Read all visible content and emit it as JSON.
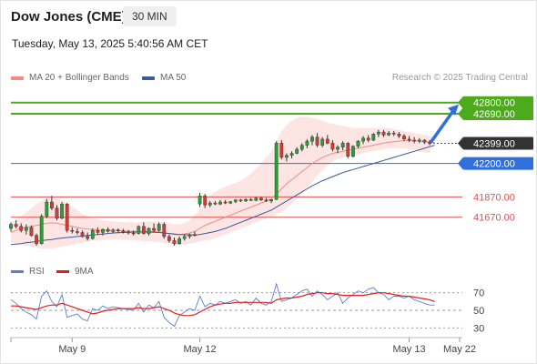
{
  "header": {
    "title": "Dow Jones (CME)",
    "interval": "30 MIN",
    "datetime": "Tuesday, May 13, 2025 5:40:56 AM CET"
  },
  "legend": {
    "items": [
      {
        "label": "MA 20 + Bollinger Bands",
        "color": "#f28b82"
      },
      {
        "label": "MA 50",
        "color": "#3b5b9a"
      }
    ],
    "credit": "Research © 2025 Trading Central"
  },
  "rsi_legend": {
    "items": [
      {
        "label": "RSI",
        "color": "#5b7fd6"
      },
      {
        "label": "9MA",
        "color": "#e0201b"
      }
    ]
  },
  "chart_data": {
    "type": "candlestick",
    "price_axis": {
      "min": 41300,
      "max": 42950
    },
    "x_ticks": [
      "May 9",
      "May 12",
      "May 13",
      "May 22"
    ],
    "levels": [
      {
        "value": 42800,
        "label": "42800.00",
        "role": "resistance",
        "color": "#4caa1c"
      },
      {
        "value": 42690,
        "label": "42690.00",
        "role": "resistance",
        "color": "#4caa1c"
      },
      {
        "value": 42399,
        "label": "42399.00",
        "role": "last",
        "color": "#333333"
      },
      {
        "value": 42200,
        "label": "42200.00",
        "role": "pivot",
        "color": "#2f6fde"
      },
      {
        "value": 41870,
        "label": "41870.00",
        "role": "support",
        "color": "#e05050"
      },
      {
        "value": 41670,
        "label": "41670.00",
        "role": "support",
        "color": "#e05050"
      }
    ],
    "candles": [
      {
        "o": 41560,
        "h": 41620,
        "l": 41530,
        "c": 41600
      },
      {
        "o": 41600,
        "h": 41640,
        "l": 41560,
        "c": 41580
      },
      {
        "o": 41580,
        "h": 41610,
        "l": 41520,
        "c": 41540
      },
      {
        "o": 41540,
        "h": 41600,
        "l": 41500,
        "c": 41570
      },
      {
        "o": 41570,
        "h": 41590,
        "l": 41480,
        "c": 41490
      },
      {
        "o": 41490,
        "h": 41510,
        "l": 41390,
        "c": 41410
      },
      {
        "o": 41410,
        "h": 41700,
        "l": 41400,
        "c": 41680
      },
      {
        "o": 41680,
        "h": 41850,
        "l": 41660,
        "c": 41820
      },
      {
        "o": 41820,
        "h": 41880,
        "l": 41740,
        "c": 41760
      },
      {
        "o": 41760,
        "h": 41790,
        "l": 41640,
        "c": 41660
      },
      {
        "o": 41660,
        "h": 41820,
        "l": 41650,
        "c": 41800
      },
      {
        "o": 41800,
        "h": 41810,
        "l": 41520,
        "c": 41540
      },
      {
        "o": 41540,
        "h": 41570,
        "l": 41510,
        "c": 41530
      },
      {
        "o": 41530,
        "h": 41560,
        "l": 41500,
        "c": 41520
      },
      {
        "o": 41520,
        "h": 41540,
        "l": 41470,
        "c": 41480
      },
      {
        "o": 41480,
        "h": 41520,
        "l": 41440,
        "c": 41460
      },
      {
        "o": 41460,
        "h": 41560,
        "l": 41450,
        "c": 41540
      },
      {
        "o": 41540,
        "h": 41570,
        "l": 41500,
        "c": 41520
      },
      {
        "o": 41520,
        "h": 41560,
        "l": 41490,
        "c": 41550
      },
      {
        "o": 41550,
        "h": 41570,
        "l": 41520,
        "c": 41530
      },
      {
        "o": 41530,
        "h": 41560,
        "l": 41510,
        "c": 41545
      },
      {
        "o": 41545,
        "h": 41560,
        "l": 41520,
        "c": 41535
      },
      {
        "o": 41535,
        "h": 41555,
        "l": 41510,
        "c": 41525
      },
      {
        "o": 41525,
        "h": 41545,
        "l": 41500,
        "c": 41515
      },
      {
        "o": 41515,
        "h": 41540,
        "l": 41490,
        "c": 41510
      },
      {
        "o": 41510,
        "h": 41590,
        "l": 41500,
        "c": 41580
      },
      {
        "o": 41580,
        "h": 41620,
        "l": 41500,
        "c": 41510
      },
      {
        "o": 41510,
        "h": 41570,
        "l": 41490,
        "c": 41560
      },
      {
        "o": 41560,
        "h": 41610,
        "l": 41520,
        "c": 41540
      },
      {
        "o": 41540,
        "h": 41620,
        "l": 41530,
        "c": 41600
      },
      {
        "o": 41600,
        "h": 41620,
        "l": 41460,
        "c": 41480
      },
      {
        "o": 41480,
        "h": 41500,
        "l": 41420,
        "c": 41440
      },
      {
        "o": 41440,
        "h": 41470,
        "l": 41390,
        "c": 41410
      },
      {
        "o": 41410,
        "h": 41480,
        "l": 41400,
        "c": 41460
      },
      {
        "o": 41460,
        "h": 41500,
        "l": 41440,
        "c": 41480
      },
      {
        "o": 41480,
        "h": 41510,
        "l": 41460,
        "c": 41500
      },
      {
        "o": 41500,
        "h": 41530,
        "l": 41480,
        "c": 41490
      },
      {
        "o": 41800,
        "h": 41910,
        "l": 41770,
        "c": 41880
      },
      {
        "o": 41880,
        "h": 41900,
        "l": 41760,
        "c": 41790
      },
      {
        "o": 41790,
        "h": 41830,
        "l": 41770,
        "c": 41810
      },
      {
        "o": 41810,
        "h": 41830,
        "l": 41790,
        "c": 41800
      },
      {
        "o": 41800,
        "h": 41840,
        "l": 41790,
        "c": 41820
      },
      {
        "o": 41820,
        "h": 41840,
        "l": 41800,
        "c": 41810
      },
      {
        "o": 41810,
        "h": 41830,
        "l": 41800,
        "c": 41825
      },
      {
        "o": 41825,
        "h": 41850,
        "l": 41810,
        "c": 41840
      },
      {
        "o": 41840,
        "h": 41850,
        "l": 41820,
        "c": 41830
      },
      {
        "o": 41830,
        "h": 41860,
        "l": 41820,
        "c": 41845
      },
      {
        "o": 41845,
        "h": 41860,
        "l": 41830,
        "c": 41835
      },
      {
        "o": 41835,
        "h": 41870,
        "l": 41830,
        "c": 41860
      },
      {
        "o": 41860,
        "h": 41870,
        "l": 41830,
        "c": 41840
      },
      {
        "o": 41840,
        "h": 41860,
        "l": 41820,
        "c": 41830
      },
      {
        "o": 41830,
        "h": 41850,
        "l": 41810,
        "c": 41845
      },
      {
        "o": 41845,
        "h": 42420,
        "l": 41840,
        "c": 42400
      },
      {
        "o": 42400,
        "h": 42430,
        "l": 42240,
        "c": 42260
      },
      {
        "o": 42260,
        "h": 42300,
        "l": 42220,
        "c": 42280
      },
      {
        "o": 42280,
        "h": 42320,
        "l": 42250,
        "c": 42300
      },
      {
        "o": 42300,
        "h": 42360,
        "l": 42290,
        "c": 42340
      },
      {
        "o": 42340,
        "h": 42400,
        "l": 42320,
        "c": 42380
      },
      {
        "o": 42380,
        "h": 42440,
        "l": 42350,
        "c": 42420
      },
      {
        "o": 42420,
        "h": 42480,
        "l": 42380,
        "c": 42460
      },
      {
        "o": 42460,
        "h": 42500,
        "l": 42360,
        "c": 42380
      },
      {
        "o": 42380,
        "h": 42460,
        "l": 42360,
        "c": 42440
      },
      {
        "o": 42440,
        "h": 42480,
        "l": 42390,
        "c": 42400
      },
      {
        "o": 42400,
        "h": 42430,
        "l": 42320,
        "c": 42340
      },
      {
        "o": 42340,
        "h": 42380,
        "l": 42300,
        "c": 42360
      },
      {
        "o": 42360,
        "h": 42420,
        "l": 42330,
        "c": 42400
      },
      {
        "o": 42400,
        "h": 42410,
        "l": 42250,
        "c": 42270
      },
      {
        "o": 42270,
        "h": 42380,
        "l": 42260,
        "c": 42370
      },
      {
        "o": 42370,
        "h": 42430,
        "l": 42350,
        "c": 42420
      },
      {
        "o": 42420,
        "h": 42470,
        "l": 42390,
        "c": 42450
      },
      {
        "o": 42450,
        "h": 42480,
        "l": 42410,
        "c": 42430
      },
      {
        "o": 42430,
        "h": 42500,
        "l": 42420,
        "c": 42490
      },
      {
        "o": 42490,
        "h": 42530,
        "l": 42460,
        "c": 42510
      },
      {
        "o": 42510,
        "h": 42530,
        "l": 42460,
        "c": 42480
      },
      {
        "o": 42480,
        "h": 42520,
        "l": 42470,
        "c": 42500
      },
      {
        "o": 42500,
        "h": 42520,
        "l": 42470,
        "c": 42490
      },
      {
        "o": 42490,
        "h": 42510,
        "l": 42450,
        "c": 42470
      },
      {
        "o": 42470,
        "h": 42490,
        "l": 42420,
        "c": 42440
      },
      {
        "o": 42440,
        "h": 42470,
        "l": 42410,
        "c": 42430
      },
      {
        "o": 42430,
        "h": 42460,
        "l": 42400,
        "c": 42420
      },
      {
        "o": 42420,
        "h": 42450,
        "l": 42400,
        "c": 42430
      },
      {
        "o": 42430,
        "h": 42440,
        "l": 42390,
        "c": 42410
      },
      {
        "o": 42410,
        "h": 42430,
        "l": 42380,
        "c": 42399
      }
    ],
    "ma20": [
      41520,
      41540,
      41560,
      41570,
      41580,
      41590,
      41600,
      41610,
      41615,
      41610,
      41600,
      41590,
      41580,
      41570,
      41560,
      41555,
      41550,
      41545,
      41540,
      41540,
      41540,
      41538,
      41535,
      41533,
      41530,
      41530,
      41530,
      41530,
      41528,
      41525,
      41520,
      41510,
      41500,
      41500,
      41505,
      41515,
      41530,
      41560,
      41590,
      41610,
      41630,
      41650,
      41670,
      41690,
      41710,
      41730,
      41750,
      41770,
      41790,
      41810,
      41830,
      41850,
      41900,
      41950,
      42000,
      42040,
      42080,
      42120,
      42160,
      42200,
      42230,
      42260,
      42280,
      42300,
      42310,
      42320,
      42330,
      42340,
      42350,
      42360,
      42370,
      42380,
      42390,
      42400,
      42410,
      42415,
      42420,
      42425,
      42425,
      42425,
      42420,
      42415,
      42410,
      42405
    ],
    "bb_upper": [
      41620,
      41640,
      41680,
      41720,
      41760,
      41800,
      41830,
      41860,
      41870,
      41860,
      41840,
      41810,
      41780,
      41740,
      41700,
      41680,
      41660,
      41650,
      41640,
      41635,
      41630,
      41625,
      41620,
      41620,
      41620,
      41620,
      41625,
      41630,
      41630,
      41625,
      41620,
      41610,
      41600,
      41600,
      41610,
      41640,
      41690,
      41750,
      41820,
      41880,
      41920,
      41950,
      41970,
      41990,
      42010,
      42030,
      42060,
      42100,
      42150,
      42200,
      42260,
      42320,
      42420,
      42520,
      42580,
      42620,
      42650,
      42660,
      42660,
      42650,
      42640,
      42620,
      42600,
      42590,
      42580,
      42570,
      42560,
      42550,
      42550,
      42550,
      42550,
      42550,
      42550,
      42550,
      42550,
      42540,
      42530,
      42520,
      42510,
      42500,
      42490,
      42480,
      42470,
      42460
    ],
    "bb_lower": [
      41420,
      41410,
      41400,
      41390,
      41380,
      41370,
      41360,
      41360,
      41360,
      41370,
      41380,
      41390,
      41400,
      41410,
      41420,
      41430,
      41440,
      41440,
      41440,
      41445,
      41450,
      41450,
      41450,
      41446,
      41440,
      41440,
      41435,
      41430,
      41426,
      41425,
      41420,
      41410,
      41400,
      41400,
      41400,
      41410,
      41420,
      41430,
      41440,
      41450,
      41460,
      41480,
      41500,
      41520,
      41540,
      41560,
      41580,
      41600,
      41620,
      41640,
      41660,
      41680,
      41700,
      41720,
      41760,
      41800,
      41850,
      41900,
      41960,
      42020,
      42080,
      42130,
      42180,
      42220,
      42240,
      42260,
      42270,
      42280,
      42290,
      42300,
      42310,
      42320,
      42330,
      42340,
      42350,
      42350,
      42350,
      42350,
      42340,
      42330,
      42320,
      42310,
      42300,
      42290
    ],
    "ma50": [
      41400,
      41405,
      41410,
      41420,
      41425,
      41430,
      41440,
      41445,
      41450,
      41460,
      41465,
      41470,
      41475,
      41480,
      41485,
      41490,
      41495,
      41500,
      41505,
      41510,
      41515,
      41518,
      41520,
      41522,
      41524,
      41525,
      41525,
      41524,
      41522,
      41520,
      41515,
      41510,
      41505,
      41500,
      41498,
      41496,
      41495,
      41500,
      41510,
      41520,
      41530,
      41545,
      41560,
      41580,
      41600,
      41620,
      41640,
      41660,
      41680,
      41700,
      41720,
      41740,
      41770,
      41800,
      41830,
      41860,
      41890,
      41920,
      41950,
      41980,
      42005,
      42030,
      42050,
      42070,
      42090,
      42110,
      42125,
      42140,
      42155,
      42170,
      42185,
      42200,
      42215,
      42230,
      42245,
      42260,
      42275,
      42290,
      42305,
      42320,
      42335,
      42350,
      42365,
      42380
    ],
    "rsi": {
      "ticks": [
        70,
        50,
        30
      ],
      "min": 20,
      "max": 80,
      "rsi": [
        62,
        58,
        52,
        48,
        45,
        40,
        66,
        72,
        60,
        54,
        68,
        42,
        44,
        46,
        40,
        38,
        52,
        50,
        55,
        52,
        54,
        53,
        52,
        51,
        50,
        58,
        48,
        56,
        53,
        60,
        42,
        36,
        32,
        44,
        48,
        52,
        50,
        66,
        54,
        58,
        56,
        60,
        58,
        60,
        62,
        58,
        60,
        56,
        64,
        58,
        56,
        60,
        80,
        60,
        62,
        64,
        68,
        72,
        74,
        66,
        72,
        68,
        62,
        66,
        70,
        58,
        64,
        68,
        72,
        70,
        74,
        76,
        70,
        68,
        62,
        66,
        66,
        64,
        66,
        62,
        60,
        58,
        56,
        56
      ],
      "ma9": [
        55,
        55,
        54,
        53,
        52,
        51,
        53,
        55,
        56,
        56,
        58,
        56,
        54,
        52,
        50,
        48,
        46,
        47,
        49,
        50,
        51,
        52,
        52,
        52,
        52,
        53,
        52,
        52,
        53,
        54,
        52,
        50,
        47,
        45,
        44,
        44,
        45,
        48,
        51,
        54,
        56,
        57,
        58,
        58,
        59,
        59,
        59,
        59,
        59,
        59,
        59,
        58,
        62,
        63,
        64,
        64,
        65,
        66,
        68,
        69,
        70,
        70,
        69,
        69,
        68,
        67,
        67,
        67,
        67,
        67,
        68,
        69,
        70,
        70,
        69,
        68,
        67,
        66,
        66,
        65,
        64,
        63,
        62,
        60
      ]
    }
  }
}
